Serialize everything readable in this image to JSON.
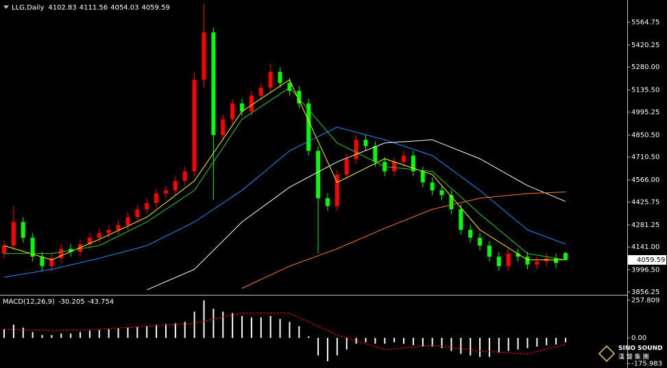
{
  "chart_data": [
    {
      "type": "candlestick",
      "symbol": "LLG,Daily",
      "up_color": "#ff0000",
      "down_color": "#00ff00",
      "axis_color": "#c0c0c0",
      "ylim": [
        3843,
        5705
      ],
      "yticks": [
        5564.75,
        5420.25,
        {
          "value": 5280,
          "label": "5280.00"
        },
        {
          "value": 5135.5,
          "label": "5135.50"
        },
        4995.25,
        {
          "value": 4850.5,
          "label": "4850.50"
        },
        {
          "value": 4710.5,
          "label": "4710.50"
        },
        {
          "value": 4566,
          "label": "4566.00"
        },
        4425.75,
        4281.25,
        {
          "value": 4141,
          "label": "4141.00"
        },
        {
          "value": 3996.5,
          "label": "3996.50"
        },
        3856.25
      ],
      "open": [
        4100,
        4150,
        4300,
        4200,
        4080,
        4020,
        4070,
        4130,
        4110,
        4160,
        4200,
        4230,
        4250,
        4280,
        4330,
        4380,
        4420,
        4480,
        4500,
        4560,
        4620,
        5200,
        5500,
        4850,
        4950,
        5050,
        5000,
        5100,
        5150,
        5250,
        5180,
        5130,
        5050,
        4750,
        4450,
        4400,
        4600,
        4700,
        4820,
        4780,
        4680,
        4620,
        4680,
        4720,
        4620,
        4550,
        4500,
        4470,
        4380,
        4250,
        4200,
        4150,
        4080,
        4020,
        4100,
        4080,
        4030,
        4050,
        4070,
        4102.83
      ],
      "high": [
        4180,
        4400,
        4330,
        4230,
        4110,
        4100,
        4160,
        4160,
        4190,
        4230,
        4260,
        4280,
        4310,
        4360,
        4410,
        4450,
        4510,
        4530,
        4590,
        4650,
        5250,
        5680,
        5530,
        4980,
        5080,
        5080,
        5130,
        5180,
        5300,
        5280,
        5210,
        5160,
        5080,
        4780,
        4480,
        4630,
        4730,
        4850,
        4850,
        4810,
        4710,
        4710,
        4750,
        4750,
        4650,
        4580,
        4530,
        4500,
        4410,
        4280,
        4230,
        4180,
        4110,
        4130,
        4130,
        4110,
        4080,
        4100,
        4100,
        4111.56
      ],
      "low": [
        4070,
        4120,
        4170,
        4050,
        3990,
        3990,
        4040,
        4080,
        4080,
        4130,
        4170,
        4200,
        4220,
        4250,
        4300,
        4350,
        4390,
        4450,
        4470,
        4530,
        4590,
        5150,
        4440,
        4820,
        4920,
        4970,
        4970,
        5070,
        5120,
        5150,
        5100,
        5020,
        4720,
        4100,
        4370,
        4370,
        4570,
        4670,
        4750,
        4650,
        4590,
        4590,
        4650,
        4590,
        4520,
        4470,
        4440,
        4350,
        4220,
        4170,
        4120,
        4050,
        3990,
        3990,
        4050,
        4000,
        4000,
        4020,
        4010,
        4054.03
      ],
      "close": [
        4150,
        4300,
        4200,
        4080,
        4020,
        4070,
        4130,
        4110,
        4160,
        4200,
        4230,
        4250,
        4280,
        4330,
        4380,
        4420,
        4480,
        4500,
        4560,
        4620,
        5200,
        5500,
        4850,
        4950,
        5050,
        5000,
        5100,
        5150,
        5250,
        5180,
        5130,
        5050,
        4750,
        4450,
        4400,
        4600,
        4700,
        4820,
        4780,
        4680,
        4620,
        4680,
        4720,
        4620,
        4550,
        4500,
        4470,
        4380,
        4250,
        4200,
        4150,
        4080,
        4020,
        4100,
        4080,
        4030,
        4050,
        4070,
        4040,
        4059.59
      ],
      "series_x": [
        0,
        5,
        10,
        15,
        20,
        25,
        30,
        35,
        40,
        45,
        50,
        55,
        59
      ],
      "series": [
        {
          "color": "#ffff00",
          "values": [
            4150,
            4060,
            4190,
            4330,
            4560,
            5000,
            5200,
            4550,
            4700,
            4600,
            4250,
            4060,
            4060
          ]
        },
        {
          "color": "#32cd32",
          "values": [
            4100,
            4100,
            4150,
            4300,
            4500,
            4950,
            5150,
            4800,
            4650,
            4620,
            4350,
            4100,
            4060
          ]
        },
        {
          "color": "#1e90ff",
          "values": [
            3950,
            4000,
            4070,
            4150,
            4300,
            4500,
            4750,
            4900,
            4820,
            4720,
            4500,
            4250,
            4160
          ]
        },
        {
          "color": "#ffffff",
          "values": [
            null,
            null,
            null,
            3870,
            4000,
            4300,
            4520,
            4680,
            4800,
            4820,
            4700,
            4530,
            4430
          ]
        },
        {
          "color": "#ff7f27",
          "values": [
            null,
            null,
            null,
            null,
            null,
            3880,
            4020,
            4130,
            4260,
            4380,
            4450,
            4480,
            4490
          ]
        }
      ]
    },
    {
      "type": "macd",
      "label": "MACD(12,26,9)",
      "hist_color": "#ffffff",
      "signal_color": "#ff0000",
      "ylim": [
        -197,
        286
      ],
      "yticks": [
        257.809,
        {
          "value": 0,
          "label": "0.00"
        },
        -175.983
      ],
      "hist": [
        60,
        90,
        70,
        40,
        20,
        20,
        30,
        30,
        40,
        50,
        55,
        60,
        65,
        70,
        75,
        80,
        90,
        95,
        100,
        110,
        180,
        257,
        200,
        180,
        170,
        150,
        140,
        140,
        150,
        130,
        110,
        80,
        10,
        -120,
        -160,
        -120,
        -80,
        -40,
        -30,
        -40,
        -40,
        -30,
        -40,
        -50,
        -60,
        -60,
        -70,
        -90,
        -110,
        -120,
        -130,
        -130,
        -100,
        -90,
        -80,
        -70,
        -60,
        -50,
        -45,
        -30.205
      ],
      "signal_x": [
        0,
        5,
        10,
        15,
        20,
        25,
        30,
        35,
        40,
        45,
        50,
        55,
        59
      ],
      "signal": [
        60,
        50,
        60,
        80,
        100,
        170,
        170,
        20,
        -80,
        -50,
        -90,
        -110,
        -43.754
      ]
    }
  ],
  "logo": {
    "brand": "SINO SOUND",
    "name": "漢 聲 集 團"
  }
}
